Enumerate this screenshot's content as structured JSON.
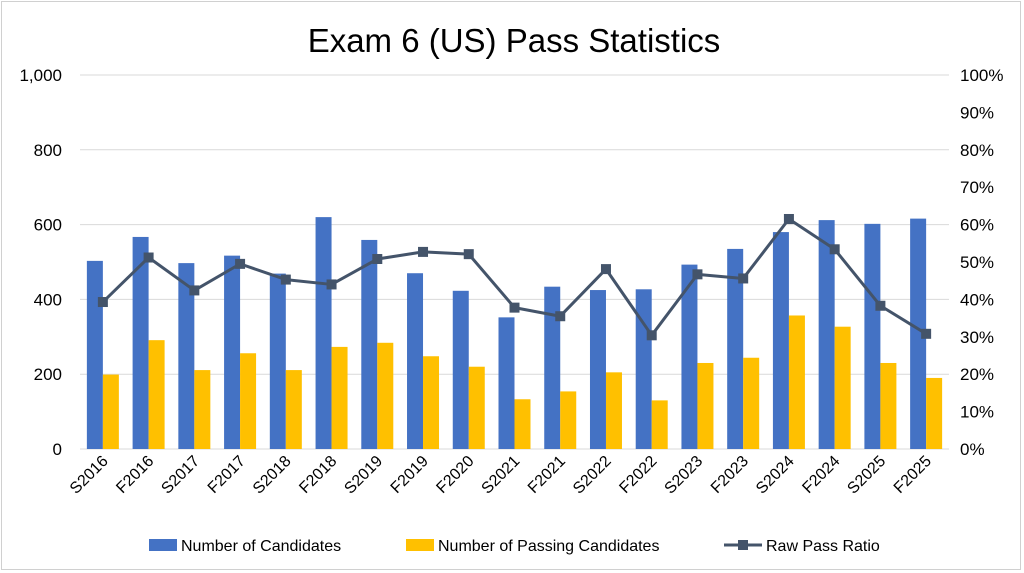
{
  "chart_data": {
    "type": "bar",
    "title": "Exam 6 (US) Pass Statistics",
    "categories": [
      "S2016",
      "F2016",
      "S2017",
      "F2017",
      "S2018",
      "F2018",
      "S2019",
      "F2019",
      "F2020",
      "S2021",
      "F2021",
      "S2022",
      "F2022",
      "S2023",
      "F2023",
      "S2024",
      "F2024",
      "S2025",
      "F2025"
    ],
    "series": [
      {
        "name": "Number of Candidates",
        "kind": "bar",
        "axis": "left",
        "color": "#4472C4",
        "values": [
          503,
          567,
          497,
          517,
          469,
          620,
          559,
          470,
          423,
          352,
          434,
          425,
          427,
          493,
          535,
          580,
          612,
          602,
          616
        ]
      },
      {
        "name": "Number of Passing Candidates",
        "kind": "bar",
        "axis": "left",
        "color": "#FFC000",
        "values": [
          199,
          291,
          211,
          256,
          211,
          273,
          284,
          248,
          220,
          133,
          154,
          205,
          130,
          230,
          244,
          357,
          327,
          230,
          190
        ]
      },
      {
        "name": "Raw Pass Ratio",
        "kind": "line",
        "axis": "right",
        "color": "#44546A",
        "values": [
          0.393,
          0.512,
          0.424,
          0.495,
          0.453,
          0.44,
          0.508,
          0.527,
          0.521,
          0.378,
          0.355,
          0.481,
          0.304,
          0.467,
          0.456,
          0.615,
          0.534,
          0.383,
          0.308
        ]
      }
    ],
    "y_left": {
      "min": 0,
      "max": 1000,
      "ticks": [
        0,
        200,
        400,
        600,
        800,
        1000
      ],
      "tick_labels": [
        "0",
        "200",
        "400",
        "600",
        "800",
        "1,000"
      ]
    },
    "y_right": {
      "min": 0,
      "max": 1,
      "ticks": [
        0,
        0.1,
        0.2,
        0.3,
        0.4,
        0.5,
        0.6,
        0.7,
        0.8,
        0.9,
        1.0
      ],
      "tick_labels": [
        "0%",
        "10%",
        "20%",
        "30%",
        "40%",
        "50%",
        "60%",
        "70%",
        "80%",
        "90%",
        "100%"
      ]
    },
    "grid": true,
    "legend_position": "bottom"
  }
}
